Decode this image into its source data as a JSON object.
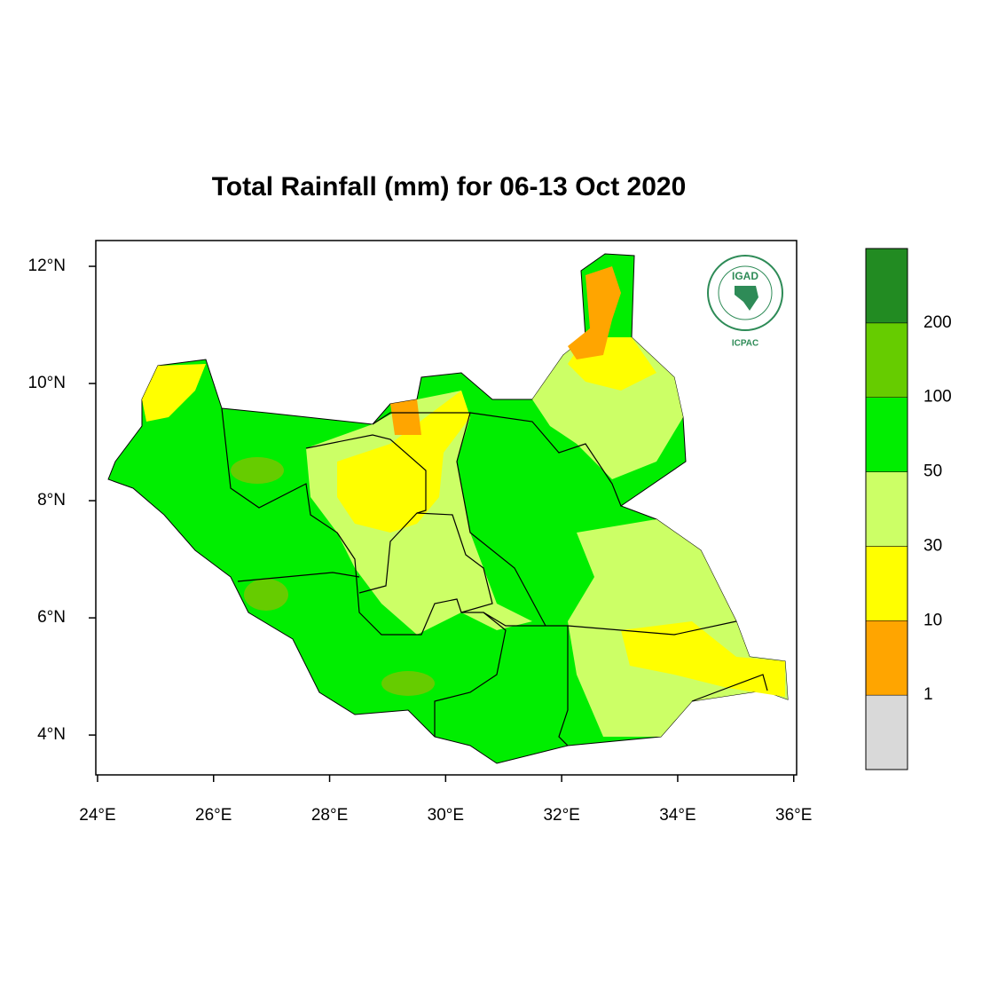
{
  "chart_data": {
    "type": "map",
    "title": "Total Rainfall (mm) for 06-13 Oct 2020",
    "xlim": [
      23.97,
      36.05
    ],
    "ylim": [
      3.32,
      12.44
    ],
    "xticks": [
      {
        "value": 24,
        "label": "24°E"
      },
      {
        "value": 26,
        "label": "26°E"
      },
      {
        "value": 28,
        "label": "28°E"
      },
      {
        "value": 30,
        "label": "30°E"
      },
      {
        "value": 32,
        "label": "32°E"
      },
      {
        "value": 34,
        "label": "34°E"
      },
      {
        "value": 36,
        "label": "36°E"
      }
    ],
    "yticks": [
      {
        "value": 4,
        "label": "4°N"
      },
      {
        "value": 6,
        "label": "6°N"
      },
      {
        "value": 8,
        "label": "8°N"
      },
      {
        "value": 10,
        "label": "10°N"
      },
      {
        "value": 12,
        "label": "12°N"
      }
    ],
    "colorbar": {
      "levels": [
        1,
        10,
        30,
        50,
        100,
        200
      ],
      "colors": [
        "#d9d9d9",
        "#ffa500",
        "#ffff00",
        "#ccff66",
        "#00ee00",
        "#66cc00",
        "#228b22"
      ]
    },
    "logo": {
      "name": "IGAD",
      "org": "ICPAC"
    }
  }
}
